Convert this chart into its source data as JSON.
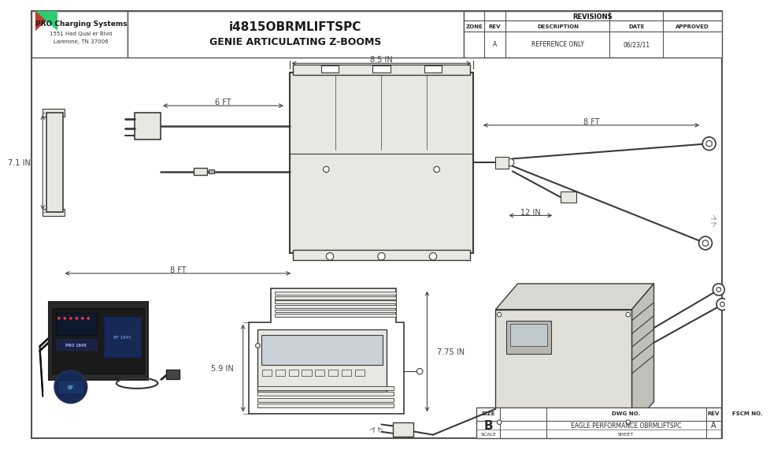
{
  "title1": "i4815OBRMLIFTSPC",
  "title2": "GENIE ARTICULATING Z-BOOMS",
  "company_name": "PRO Charging Systems",
  "company_addr1": "1551 Had Qual er Blvd",
  "company_addr2": "Larerone, TN 37006",
  "revisions_label": "REVISIONS",
  "zone_label": "ZONE",
  "rev_label": "REV",
  "desc_label": "DESCRIPTION",
  "date_label": "DATE",
  "approved_label": "APPROVED",
  "rev_a": "A",
  "desc_a": "REFERENCE ONLY",
  "date_a": "06/23/11",
  "dim_85": "8.5 IN",
  "dim_6ft": "6 FT",
  "dim_8ft_left": "8 FT",
  "dim_8ft_right": "8 FT",
  "dim_12in": "12 IN",
  "dim_71in": "7.1 IN",
  "dim_59in": "5.9 IN",
  "dim_775in": "7.75 IN",
  "size_label": "SIZE",
  "size_val": "B",
  "fscm_label": "FSCM NO.",
  "dwg_label": "DWG NO.",
  "dwg_val": "EAGLE PERFORMANCE OBRMLIFTSPC",
  "rev_label2": "REV",
  "rev_val2": "A",
  "scale_label": "SCALE",
  "sheet_label": "SHEET",
  "bg_color": "#f2f2ee",
  "line_color": "#3a3a3a",
  "border_color": "#555555",
  "text_color": "#2a2a2a",
  "dim_line_color": "#444444",
  "white": "#ffffff",
  "light_gray": "#e8e8e2",
  "mid_gray": "#b0b0a8",
  "dark_gray": "#606060"
}
